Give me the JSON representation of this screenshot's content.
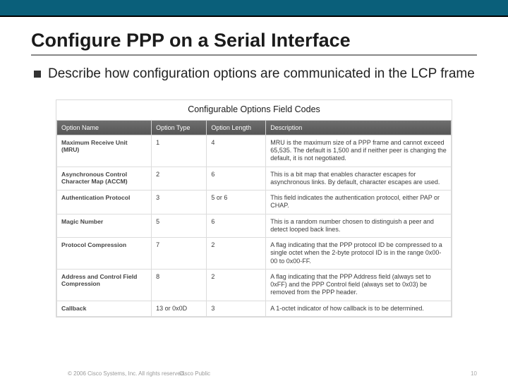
{
  "slide": {
    "title": "Configure PPP on a Serial Interface",
    "bullet": "Describe how configuration options are communicated in the LCP frame"
  },
  "table": {
    "caption": "Configurable Options Field Codes",
    "header_bg": "#606060",
    "header_fg": "#ffffff",
    "border_color": "#dcdcdc",
    "columns": [
      "Option Name",
      "Option Type",
      "Option Length",
      "Description"
    ],
    "rows": [
      {
        "name": "Maximum Receive Unit (MRU)",
        "type": "1",
        "length": "4",
        "desc": "MRU is the maximum size of a PPP frame and cannot exceed 65,535. The default is 1,500 and if neither peer is changing the default, it is not negotiated."
      },
      {
        "name": "Asynchronous Control Character Map (ACCM)",
        "type": "2",
        "length": "6",
        "desc": "This is a bit map that enables character escapes for asynchronous links. By default, character escapes are used."
      },
      {
        "name": "Authentication Protocol",
        "type": "3",
        "length": "5 or 6",
        "desc": "This field indicates the authentication protocol, either PAP or CHAP."
      },
      {
        "name": "Magic Number",
        "type": "5",
        "length": "6",
        "desc": "This is a random number chosen to distinguish a peer and detect looped back lines."
      },
      {
        "name": "Protocol Compression",
        "type": "7",
        "length": "2",
        "desc": "A flag indicating that the PPP protocol ID be compressed to a single octet when the 2-byte protocol ID is in the range 0x00-00 to 0x00-FF."
      },
      {
        "name": "Address and Control Field Compression",
        "type": "8",
        "length": "2",
        "desc": "A flag indicating that the PPP Address field (always set to 0xFF) and the PPP Control field (always set to 0x03) be removed from the PPP header."
      },
      {
        "name": "Callback",
        "type": "13 or 0x0D",
        "length": "3",
        "desc": "A 1-octet indicator of how callback is to be determined."
      }
    ]
  },
  "footer": {
    "copyright": "© 2006 Cisco Systems, Inc. All rights reserved.",
    "classification": "Cisco Public",
    "page": "10"
  },
  "colors": {
    "top_bar": "#0a5f7a",
    "title_text": "#1b1b1b",
    "underline": "#888888",
    "bg": "#ffffff"
  }
}
